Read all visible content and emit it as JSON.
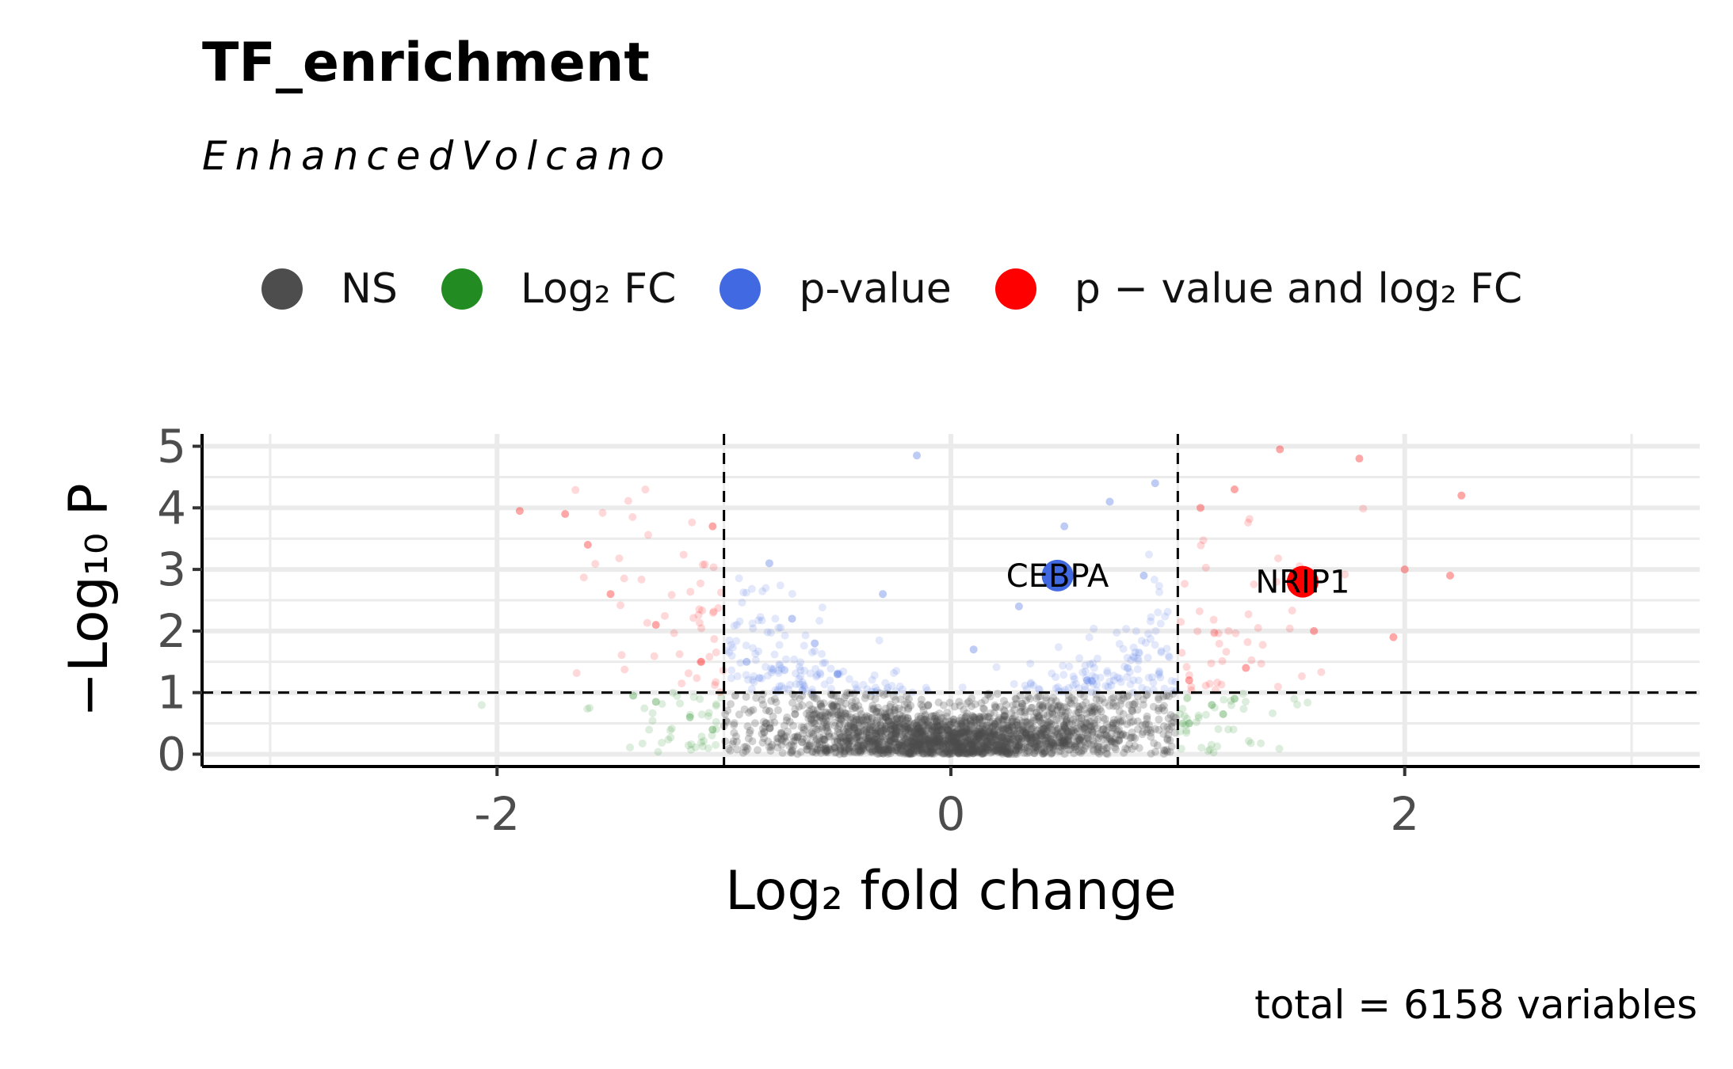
{
  "title": "TF_enrichment",
  "subtitle": "EnhancedVolcano",
  "caption": "total = 6158 variables",
  "legend": [
    {
      "label": "NS",
      "color": "#4d4d4d"
    },
    {
      "label": "Log₂ FC",
      "color": "#228b22"
    },
    {
      "label": "p-value",
      "color": "#4169e1"
    },
    {
      "label": "p − value and log₂ FC",
      "color": "#ff0000"
    }
  ],
  "chart_data": {
    "type": "scatter",
    "title": "TF_enrichment",
    "subtitle": "EnhancedVolcano",
    "xlabel": "Log₂ fold change",
    "ylabel": "−Log₁₀ P",
    "xlim": [
      -3.3,
      3.3
    ],
    "ylim": [
      -0.2,
      5.2
    ],
    "x_ticks": [
      -2,
      0,
      2
    ],
    "y_ticks": [
      0,
      1,
      2,
      3,
      4,
      5
    ],
    "fc_cutoff": 1,
    "p_cutoff_log10": 1,
    "grid": true,
    "legend_position": "top",
    "total_variables": 6158,
    "highlighted": [
      {
        "label": "CEBPA",
        "x": 0.47,
        "y": 2.9,
        "category": "p-value"
      },
      {
        "label": "NRIP1",
        "x": 1.55,
        "y": 2.8,
        "category": "p-value and log2 FC"
      }
    ],
    "series": [
      {
        "name": "NS",
        "color": "#4d4d4d",
        "points": [
          [
            -0.95,
            0.95
          ],
          [
            -0.8,
            0.7
          ],
          [
            -0.6,
            0.5
          ],
          [
            -0.4,
            0.3
          ],
          [
            -0.2,
            0.15
          ],
          [
            0,
            0.05
          ],
          [
            0.2,
            0.15
          ],
          [
            0.4,
            0.3
          ],
          [
            0.6,
            0.5
          ],
          [
            0.8,
            0.7
          ],
          [
            0.95,
            0.95
          ],
          [
            -0.5,
            0.2
          ],
          [
            0.5,
            0.2
          ],
          [
            0.1,
            0.6
          ],
          [
            -0.1,
            0.8
          ]
        ]
      },
      {
        "name": "Log₂ FC",
        "color": "#228b22",
        "points": [
          [
            -1.3,
            0.85
          ],
          [
            -1.15,
            0.6
          ],
          [
            -1.05,
            0.4
          ],
          [
            1.05,
            0.5
          ],
          [
            1.15,
            0.8
          ],
          [
            1.25,
            0.9
          ],
          [
            -1.4,
            0.95
          ],
          [
            1.2,
            0.65
          ]
        ]
      },
      {
        "name": "p-value",
        "color": "#4169e1",
        "points": [
          [
            -0.9,
            1.5
          ],
          [
            -0.7,
            2.2
          ],
          [
            -0.5,
            1.3
          ],
          [
            -0.3,
            2.6
          ],
          [
            -0.15,
            4.85
          ],
          [
            0.1,
            1.7
          ],
          [
            0.3,
            2.4
          ],
          [
            0.5,
            3.7
          ],
          [
            0.7,
            4.1
          ],
          [
            0.9,
            4.4
          ],
          [
            -0.8,
            3.1
          ],
          [
            0.6,
            1.2
          ],
          [
            -0.6,
            1.8
          ],
          [
            0.85,
            2.9
          ]
        ]
      },
      {
        "name": "p − value and log₂ FC",
        "color": "#ff0000",
        "points": [
          [
            -1.9,
            3.95
          ],
          [
            -1.7,
            3.9
          ],
          [
            -1.6,
            3.4
          ],
          [
            -1.5,
            2.6
          ],
          [
            -1.3,
            2.1
          ],
          [
            -1.1,
            1.5
          ],
          [
            -1.05,
            3.7
          ],
          [
            1.1,
            4.0
          ],
          [
            1.25,
            4.3
          ],
          [
            1.45,
            4.95
          ],
          [
            1.8,
            4.8
          ],
          [
            2.25,
            4.2
          ],
          [
            2.0,
            3.0
          ],
          [
            2.2,
            2.9
          ],
          [
            1.6,
            2.0
          ],
          [
            1.3,
            1.4
          ],
          [
            1.05,
            1.2
          ],
          [
            1.95,
            1.9
          ]
        ]
      }
    ]
  }
}
